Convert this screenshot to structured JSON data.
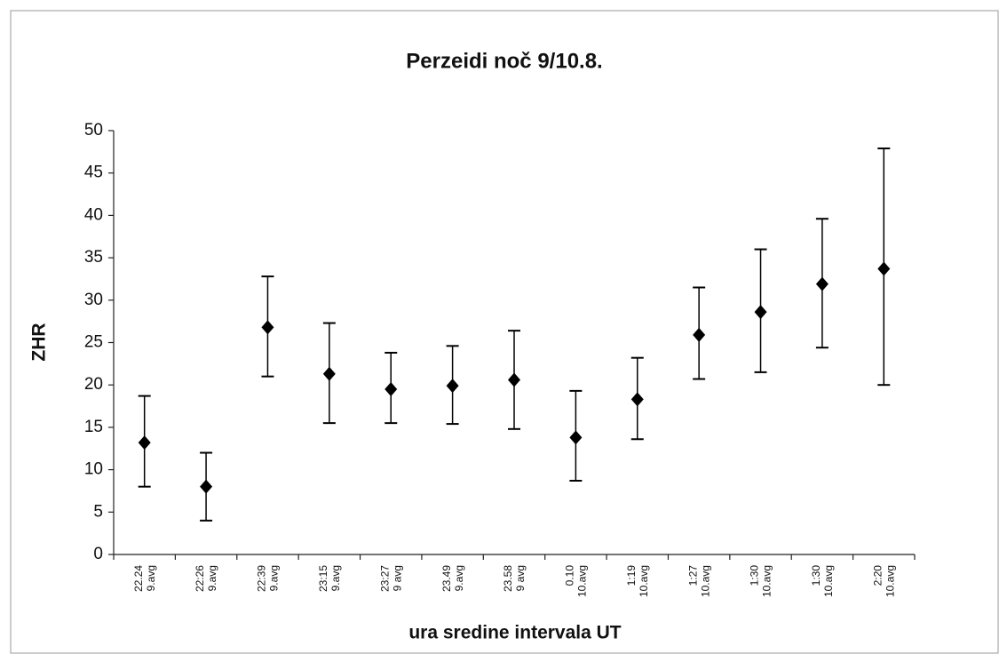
{
  "chart_data": {
    "type": "errorbar",
    "title": "Perzeidi noč 9/10.8.",
    "x_label": "ura sredine intervala UT",
    "y_label": "ZHR",
    "categories": [
      [
        "22.24",
        "9.avg"
      ],
      [
        "22:26",
        "9.avg"
      ],
      [
        "22:39",
        "9.avg"
      ],
      [
        "23:15",
        "9.avg"
      ],
      [
        "23:27",
        "9 avg"
      ],
      [
        "23.49",
        "9.avg"
      ],
      [
        "23.58",
        "9 avg"
      ],
      [
        "0.10",
        "10.avg"
      ],
      [
        "1:19",
        "10.avg"
      ],
      [
        "1:27",
        "10.avg"
      ],
      [
        "1:30",
        "10.avg"
      ],
      [
        "1:30",
        "10.avg"
      ],
      [
        "2:20",
        "10.avg"
      ]
    ],
    "values": [
      13.2,
      8,
      26.8,
      21.3,
      19.5,
      19.9,
      20.6,
      13.8,
      18.3,
      25.9,
      28.6,
      31.9,
      33.7
    ],
    "low": [
      8,
      4,
      21,
      15.5,
      15.5,
      15.4,
      14.8,
      8.7,
      13.6,
      20.7,
      21.5,
      24.4,
      20
    ],
    "high": [
      18.7,
      12,
      32.8,
      27.3,
      23.8,
      24.6,
      26.4,
      19.3,
      23.2,
      31.5,
      36,
      39.6,
      47.9
    ],
    "color": "#000000",
    "ylim": [
      0,
      50
    ],
    "yticks": [
      0,
      5,
      10,
      15,
      20,
      25,
      30,
      35,
      40,
      45,
      50
    ]
  }
}
